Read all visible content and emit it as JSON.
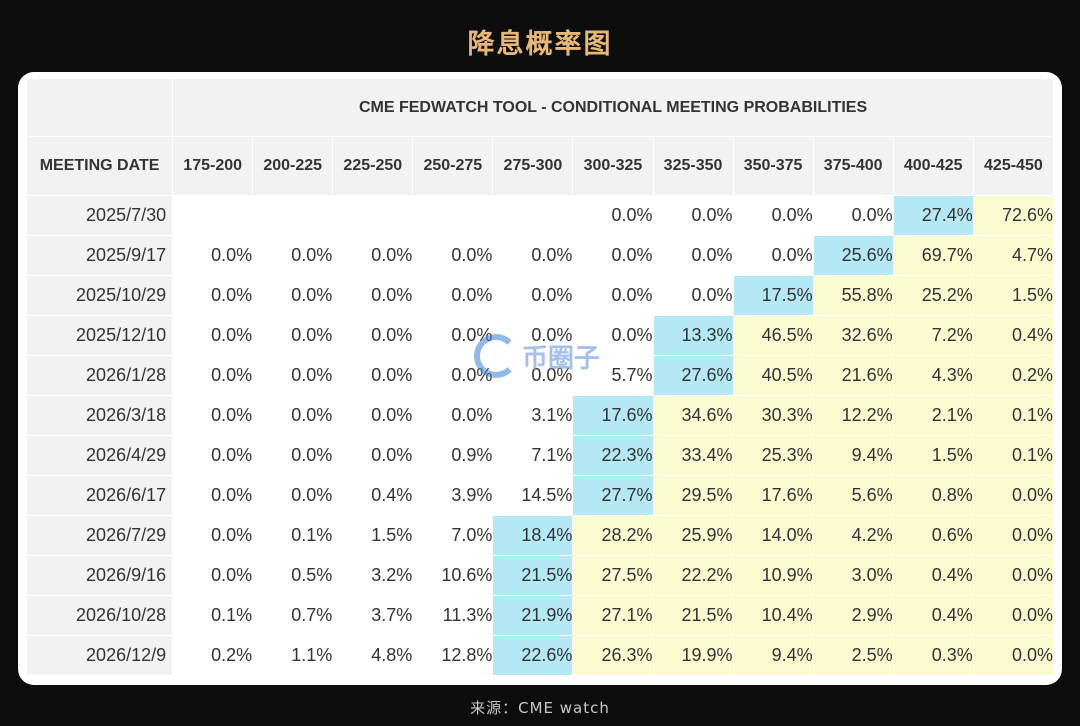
{
  "page_title": "降息概率图",
  "source_text": "来源：CME watch",
  "watermark_text": "币圈子",
  "colors": {
    "yellow": "#fbfbd2",
    "blue": "#b3e8f4",
    "header": "#f2f2f2"
  },
  "chart_data": {
    "type": "table",
    "title": "CME FEDWATCH TOOL - CONDITIONAL MEETING PROBABILITIES",
    "row_header_label": "MEETING DATE",
    "columns": [
      "175-200",
      "200-225",
      "225-250",
      "250-275",
      "275-300",
      "300-325",
      "325-350",
      "350-375",
      "375-400",
      "400-425",
      "425-450"
    ],
    "rows": [
      {
        "date": "2025/7/30",
        "values": [
          "",
          "",
          "",
          "",
          "",
          "0.0%",
          "0.0%",
          "0.0%",
          "0.0%",
          "27.4%",
          "72.6%"
        ],
        "highlight": 10,
        "yellow_from": 11
      },
      {
        "date": "2025/9/17",
        "values": [
          "0.0%",
          "0.0%",
          "0.0%",
          "0.0%",
          "0.0%",
          "0.0%",
          "0.0%",
          "0.0%",
          "25.6%",
          "69.7%",
          "4.7%"
        ],
        "highlight": 9,
        "yellow_from": 10
      },
      {
        "date": "2025/10/29",
        "values": [
          "0.0%",
          "0.0%",
          "0.0%",
          "0.0%",
          "0.0%",
          "0.0%",
          "0.0%",
          "17.5%",
          "55.8%",
          "25.2%",
          "1.5%"
        ],
        "highlight": 8,
        "yellow_from": 9
      },
      {
        "date": "2025/12/10",
        "values": [
          "0.0%",
          "0.0%",
          "0.0%",
          "0.0%",
          "0.0%",
          "0.0%",
          "13.3%",
          "46.5%",
          "32.6%",
          "7.2%",
          "0.4%"
        ],
        "highlight": 7,
        "yellow_from": 8
      },
      {
        "date": "2026/1/28",
        "values": [
          "0.0%",
          "0.0%",
          "0.0%",
          "0.0%",
          "0.0%",
          "5.7%",
          "27.6%",
          "40.5%",
          "21.6%",
          "4.3%",
          "0.2%"
        ],
        "highlight": 7,
        "yellow_from": 8
      },
      {
        "date": "2026/3/18",
        "values": [
          "0.0%",
          "0.0%",
          "0.0%",
          "0.0%",
          "3.1%",
          "17.6%",
          "34.6%",
          "30.3%",
          "12.2%",
          "2.1%",
          "0.1%"
        ],
        "highlight": 6,
        "yellow_from": 7
      },
      {
        "date": "2026/4/29",
        "values": [
          "0.0%",
          "0.0%",
          "0.0%",
          "0.9%",
          "7.1%",
          "22.3%",
          "33.4%",
          "25.3%",
          "9.4%",
          "1.5%",
          "0.1%"
        ],
        "highlight": 6,
        "yellow_from": 7
      },
      {
        "date": "2026/6/17",
        "values": [
          "0.0%",
          "0.0%",
          "0.4%",
          "3.9%",
          "14.5%",
          "27.7%",
          "29.5%",
          "17.6%",
          "5.6%",
          "0.8%",
          "0.0%"
        ],
        "highlight": 6,
        "yellow_from": 7
      },
      {
        "date": "2026/7/29",
        "values": [
          "0.0%",
          "0.1%",
          "1.5%",
          "7.0%",
          "18.4%",
          "28.2%",
          "25.9%",
          "14.0%",
          "4.2%",
          "0.6%",
          "0.0%"
        ],
        "highlight": 5,
        "yellow_from": 6
      },
      {
        "date": "2026/9/16",
        "values": [
          "0.0%",
          "0.5%",
          "3.2%",
          "10.6%",
          "21.5%",
          "27.5%",
          "22.2%",
          "10.9%",
          "3.0%",
          "0.4%",
          "0.0%"
        ],
        "highlight": 5,
        "yellow_from": 6
      },
      {
        "date": "2026/10/28",
        "values": [
          "0.1%",
          "0.7%",
          "3.7%",
          "11.3%",
          "21.9%",
          "27.1%",
          "21.5%",
          "10.4%",
          "2.9%",
          "0.4%",
          "0.0%"
        ],
        "highlight": 5,
        "yellow_from": 6
      },
      {
        "date": "2026/12/9",
        "values": [
          "0.2%",
          "1.1%",
          "4.8%",
          "12.8%",
          "22.6%",
          "26.3%",
          "19.9%",
          "9.4%",
          "2.5%",
          "0.3%",
          "0.0%"
        ],
        "highlight": 5,
        "yellow_from": 6
      }
    ]
  }
}
